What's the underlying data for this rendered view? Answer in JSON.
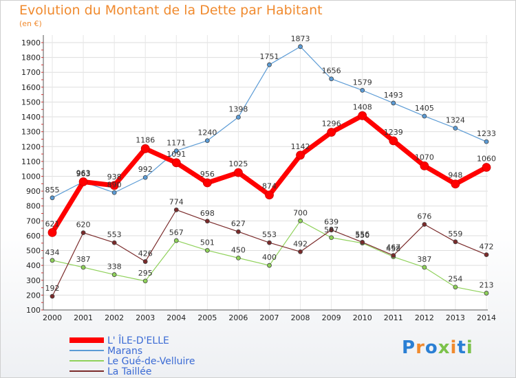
{
  "header": {
    "title": "Evolution du Montant de la Dette par Habitant",
    "unit": "(en €)"
  },
  "logo": {
    "text": "Proxiti",
    "colors": [
      "#2a7fd4",
      "#f08a2e",
      "#2a7fd4",
      "#7cc24a",
      "#f08a2e",
      "#2a7fd4",
      "#7cc24a"
    ]
  },
  "chart_data": {
    "type": "line",
    "x": [
      "2000",
      "2001",
      "2002",
      "2003",
      "2004",
      "2005",
      "2006",
      "2007",
      "2008",
      "2009",
      "2010",
      "2011",
      "2012",
      "2013",
      "2014"
    ],
    "ylim": [
      100,
      1900
    ],
    "yticks": [
      100,
      200,
      300,
      400,
      500,
      600,
      700,
      800,
      900,
      1000,
      1100,
      1200,
      1300,
      1400,
      1500,
      1600,
      1700,
      1800,
      1900
    ],
    "grid": true,
    "legend_position": "bottom-left",
    "series": [
      {
        "name": "Marans",
        "color": "#5b9bd5",
        "width": 1.2,
        "marker": 3,
        "values": [
          855,
          963,
          890,
          992,
          1171,
          1240,
          1398,
          1751,
          1873,
          1656,
          1579,
          1493,
          1405,
          1324,
          1233
        ]
      },
      {
        "name": "Le Gué-de-Velluire",
        "color": "#8fd15a",
        "width": 1.2,
        "marker": 3,
        "values": [
          434,
          387,
          338,
          295,
          567,
          501,
          450,
          400,
          700,
          587,
          550,
          458,
          387,
          254,
          213
        ]
      },
      {
        "name": "La Taillée",
        "color": "#7a2a2a",
        "width": 1.2,
        "marker": 3,
        "values": [
          192,
          620,
          553,
          426,
          774,
          698,
          627,
          553,
          492,
          639,
          556,
          467,
          676,
          559,
          472
        ]
      },
      {
        "name": "L' ÎLE-D'ELLE",
        "color": "#ff0000",
        "width": 7,
        "marker": 6,
        "values": [
          621,
          963,
          938,
          1186,
          1091,
          956,
          1025,
          874,
          1142,
          1296,
          1408,
          1239,
          1070,
          948,
          1060
        ]
      }
    ],
    "legend_order": [
      3,
      0,
      1,
      2
    ]
  }
}
